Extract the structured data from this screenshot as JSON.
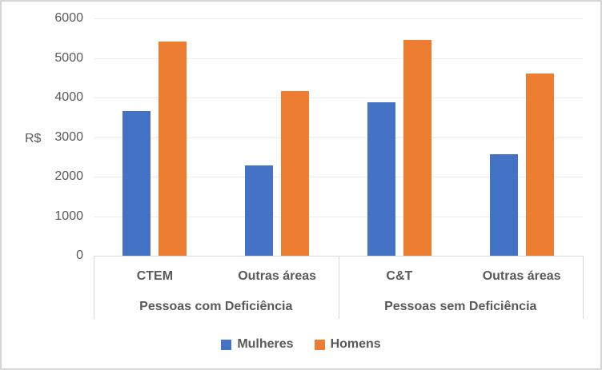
{
  "chart_data": {
    "type": "bar",
    "title": "",
    "xlabel": "",
    "ylabel": "R$",
    "ylim": [
      0,
      6000
    ],
    "ytick_step": 1000,
    "yticks": [
      0,
      1000,
      2000,
      3000,
      4000,
      5000,
      6000
    ],
    "grid": true,
    "legend_position": "bottom",
    "groups": [
      {
        "label": "Pessoas com Deficiência",
        "categories": [
          "CTEM",
          "Outras áreas"
        ]
      },
      {
        "label": "Pessoas sem Deficiência",
        "categories": [
          "C&T",
          "Outras áreas"
        ]
      }
    ],
    "series": [
      {
        "name": "Mulheres",
        "color": "#4472C4",
        "values": [
          3650,
          2280,
          3870,
          2560
        ]
      },
      {
        "name": "Homens",
        "color": "#ED7D31",
        "values": [
          5410,
          4170,
          5460,
          4610
        ]
      }
    ],
    "colors": {
      "tick_text": "#595959",
      "category_text": "#595959",
      "gridline": "#ededed",
      "axis_line": "#d9d9d9",
      "frame_border": "#d6d6d6"
    }
  }
}
